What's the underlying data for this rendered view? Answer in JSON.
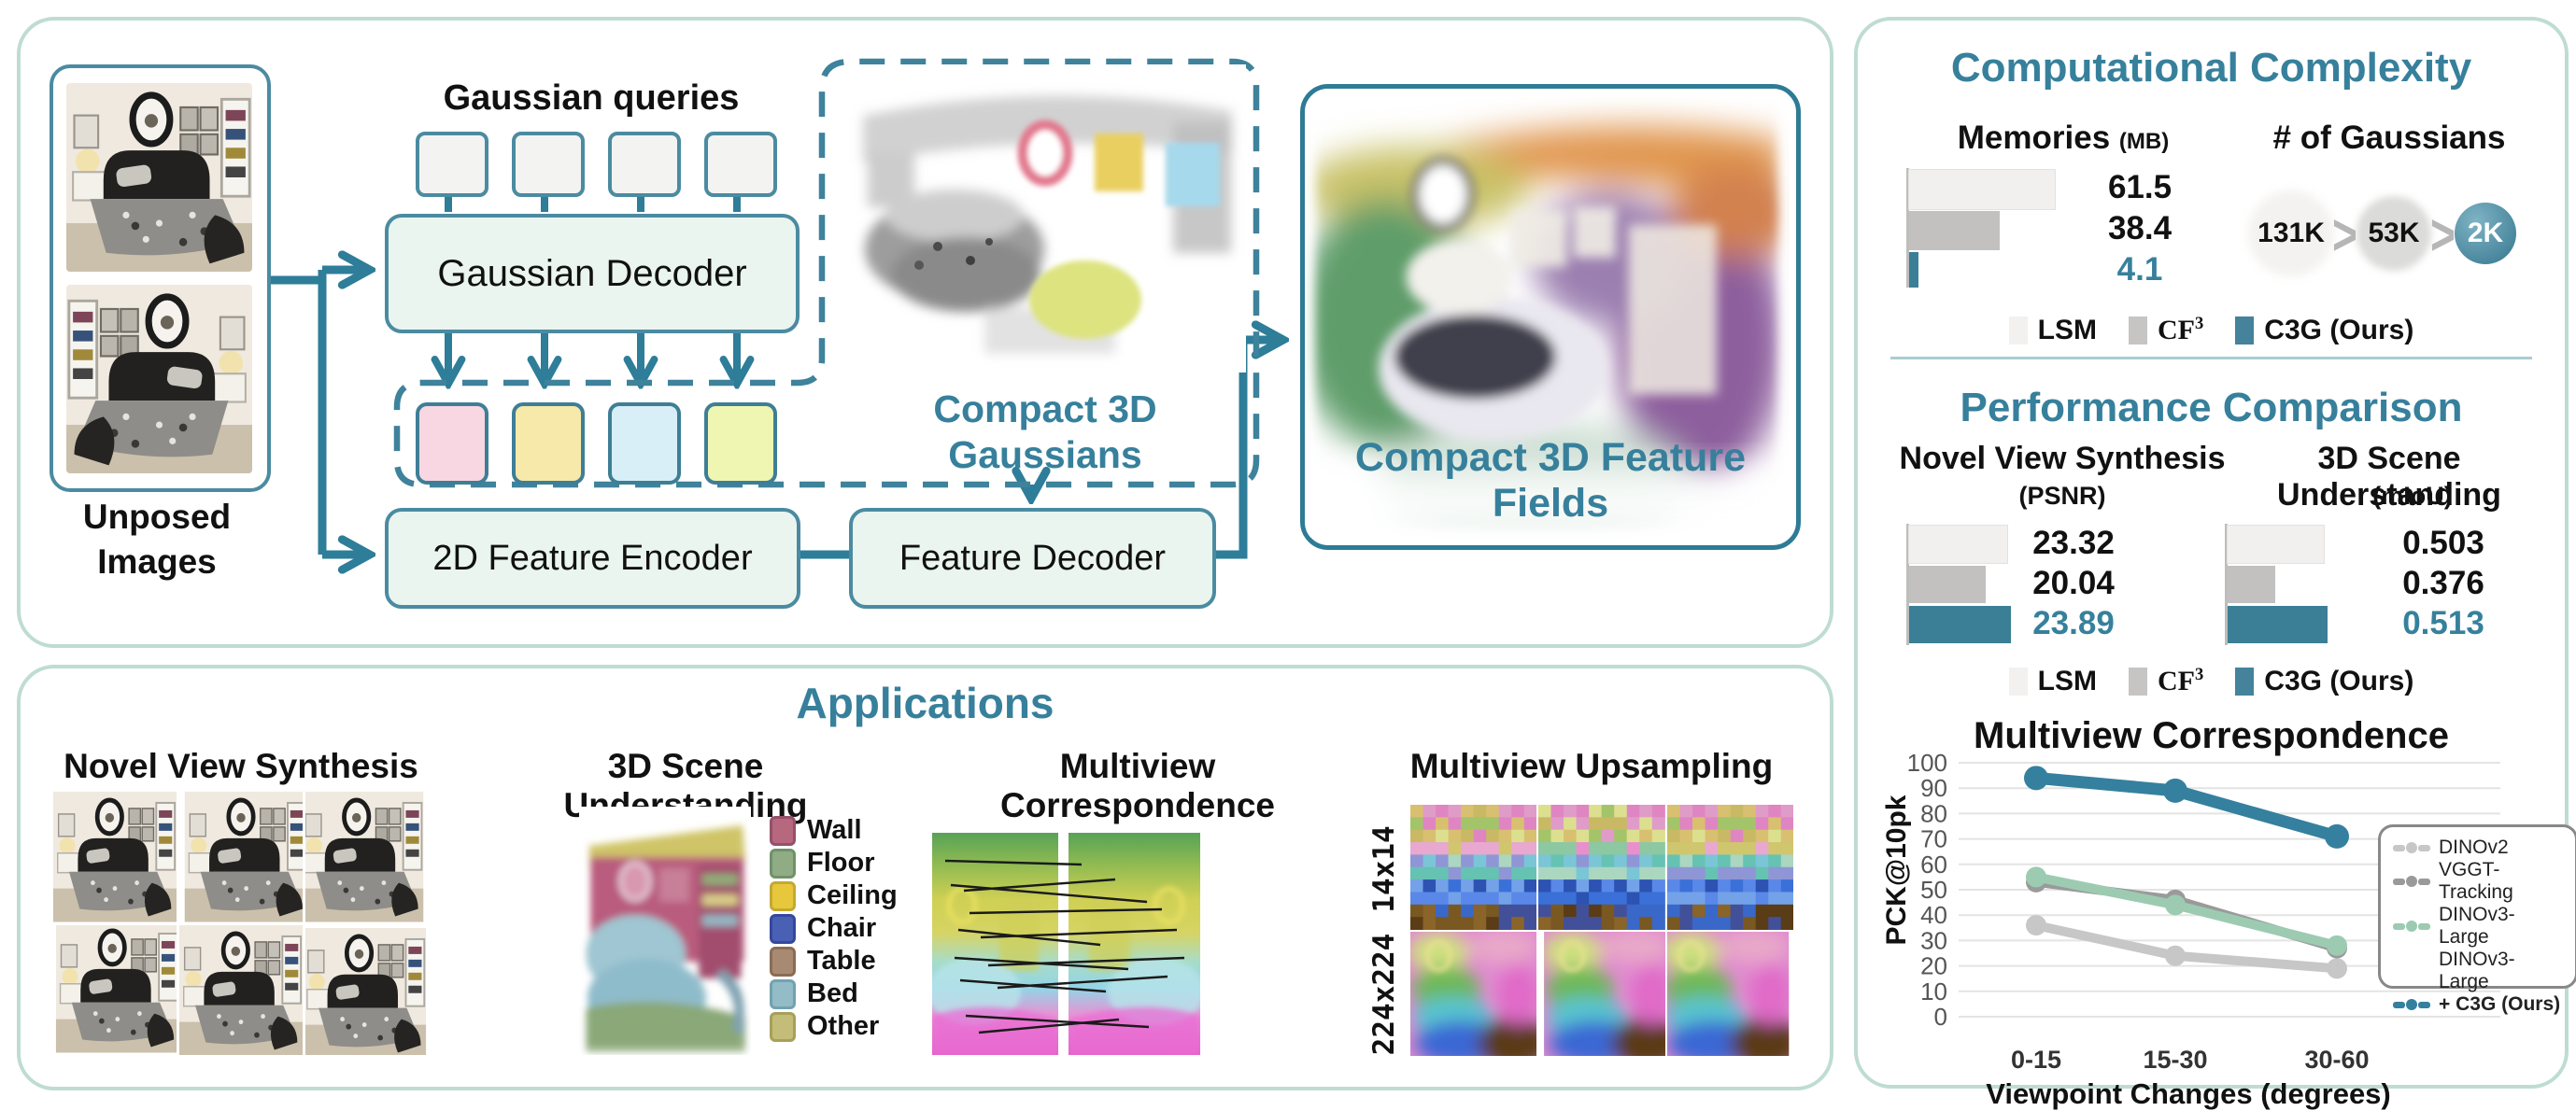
{
  "colors": {
    "accent_teal": "#37809c",
    "stroke_teal": "#2e7d99",
    "panel_border": "#bedcd3",
    "box_fill": "#eaf5f0",
    "bar_light": "#f1f0ee",
    "bar_mid": "#c2c1bf",
    "bar_teal": "#3a7f96"
  },
  "pipeline": {
    "queries_label": "Gaussian queries",
    "unposed_line1": "Unposed",
    "unposed_line2": "Images",
    "gaussian_decoder": "Gaussian Decoder",
    "feature_encoder": "2D Feature Encoder",
    "feature_decoder": "Feature Decoder",
    "compact_gaussians_line1": "Compact 3D",
    "compact_gaussians_line2": "Gaussians",
    "compact_fields": "Compact 3D Feature Fields"
  },
  "complexity": {
    "title": "Computational Complexity",
    "memories_title": "Memories",
    "memories_unit": "(MB)",
    "gaussians_title": "# of Gaussians"
  },
  "performance": {
    "title": "Performance Comparison",
    "nvs_title": "Novel View Synthesis",
    "nvs_metric": "(PSNR)",
    "scene_title": "3D Scene Understanding",
    "scene_metric": "(mIoU)"
  },
  "legend_methods": [
    {
      "label": "LSM",
      "color": "#f2f1ef"
    },
    {
      "label": "CF",
      "sup": "3",
      "color": "#c6c5c3"
    },
    {
      "label": "C3G (Ours)",
      "color": "#45829b"
    }
  ],
  "applications": {
    "title": "Applications",
    "nvs_heading": "Novel View Synthesis",
    "scene_heading": "3D Scene Understanding",
    "corr_heading": "Multiview Correspondence",
    "upsampling_heading": "Multiview Upsampling",
    "upsampling_rows": [
      "14x14",
      "224x224"
    ],
    "seg_legend": [
      {
        "label": "Wall",
        "color": "#b5687e",
        "border": "#96506a"
      },
      {
        "label": "Floor",
        "color": "#8fac85",
        "border": "#70926a"
      },
      {
        "label": "Ceiling",
        "color": "#e7c83d",
        "border": "#c4a930"
      },
      {
        "label": "Chair",
        "color": "#4a60b4",
        "border": "#35499c"
      },
      {
        "label": "Table",
        "color": "#a88a72",
        "border": "#8a6c55"
      },
      {
        "label": "Bed",
        "color": "#93bcc7",
        "border": "#72a2b0"
      },
      {
        "label": "Other",
        "color": "#c4bd79",
        "border": "#a6a059"
      }
    ]
  },
  "chart_data": [
    {
      "id": "memories",
      "type": "bar",
      "orientation": "horizontal",
      "title": "Memories (MB)",
      "categories": [
        "LSM",
        "CF3",
        "C3G (Ours)"
      ],
      "values": [
        61.5,
        38.4,
        4.1
      ],
      "xlim": [
        0,
        65
      ],
      "grid": false
    },
    {
      "id": "gaussian_count",
      "type": "bar",
      "layout": "shrinking-circles",
      "title": "# of Gaussians",
      "categories": [
        "LSM",
        "CF3",
        "C3G (Ours)"
      ],
      "values": [
        "131K",
        "53K",
        "2K"
      ],
      "unit": "K"
    },
    {
      "id": "nvs_psnr",
      "type": "bar",
      "orientation": "horizontal",
      "title": "Novel View Synthesis (PSNR)",
      "categories": [
        "LSM",
        "CF3",
        "C3G (Ours)"
      ],
      "values": [
        23.32,
        20.04,
        23.89
      ],
      "xlim": [
        8,
        24.5
      ],
      "grid": false
    },
    {
      "id": "scene_miou",
      "type": "bar",
      "orientation": "horizontal",
      "title": "3D Scene Understanding (mIoU)",
      "categories": [
        "LSM",
        "CF3",
        "C3G (Ours)"
      ],
      "values": [
        0.503,
        0.376,
        0.513
      ],
      "xlim": [
        0.25,
        0.52
      ],
      "grid": false
    },
    {
      "id": "multiview",
      "type": "line",
      "title": "Multiview Correspondence",
      "xlabel": "Viewpoint Changes (degrees)",
      "ylabel": "PCK@10pk",
      "ylim": [
        0,
        100
      ],
      "ytick_step": 10,
      "grid": true,
      "legend_position": "right",
      "categories": [
        "0-15",
        "15-30",
        "30-60"
      ],
      "series": [
        {
          "name": "DINOv2",
          "color": "#c7c7c7",
          "values": [
            36,
            24,
            19
          ]
        },
        {
          "name": "VGGT-Tracking",
          "color": "#9a9a9a",
          "values": [
            53,
            46,
            27
          ]
        },
        {
          "name": "DINOv3-Large",
          "color": "#9ccbb2",
          "values": [
            55,
            44,
            28
          ]
        },
        {
          "name": "DINOv3-Large",
          "name2": "+ C3G (Ours)",
          "color": "#35809e",
          "values": [
            94,
            89,
            71
          ]
        }
      ]
    }
  ]
}
